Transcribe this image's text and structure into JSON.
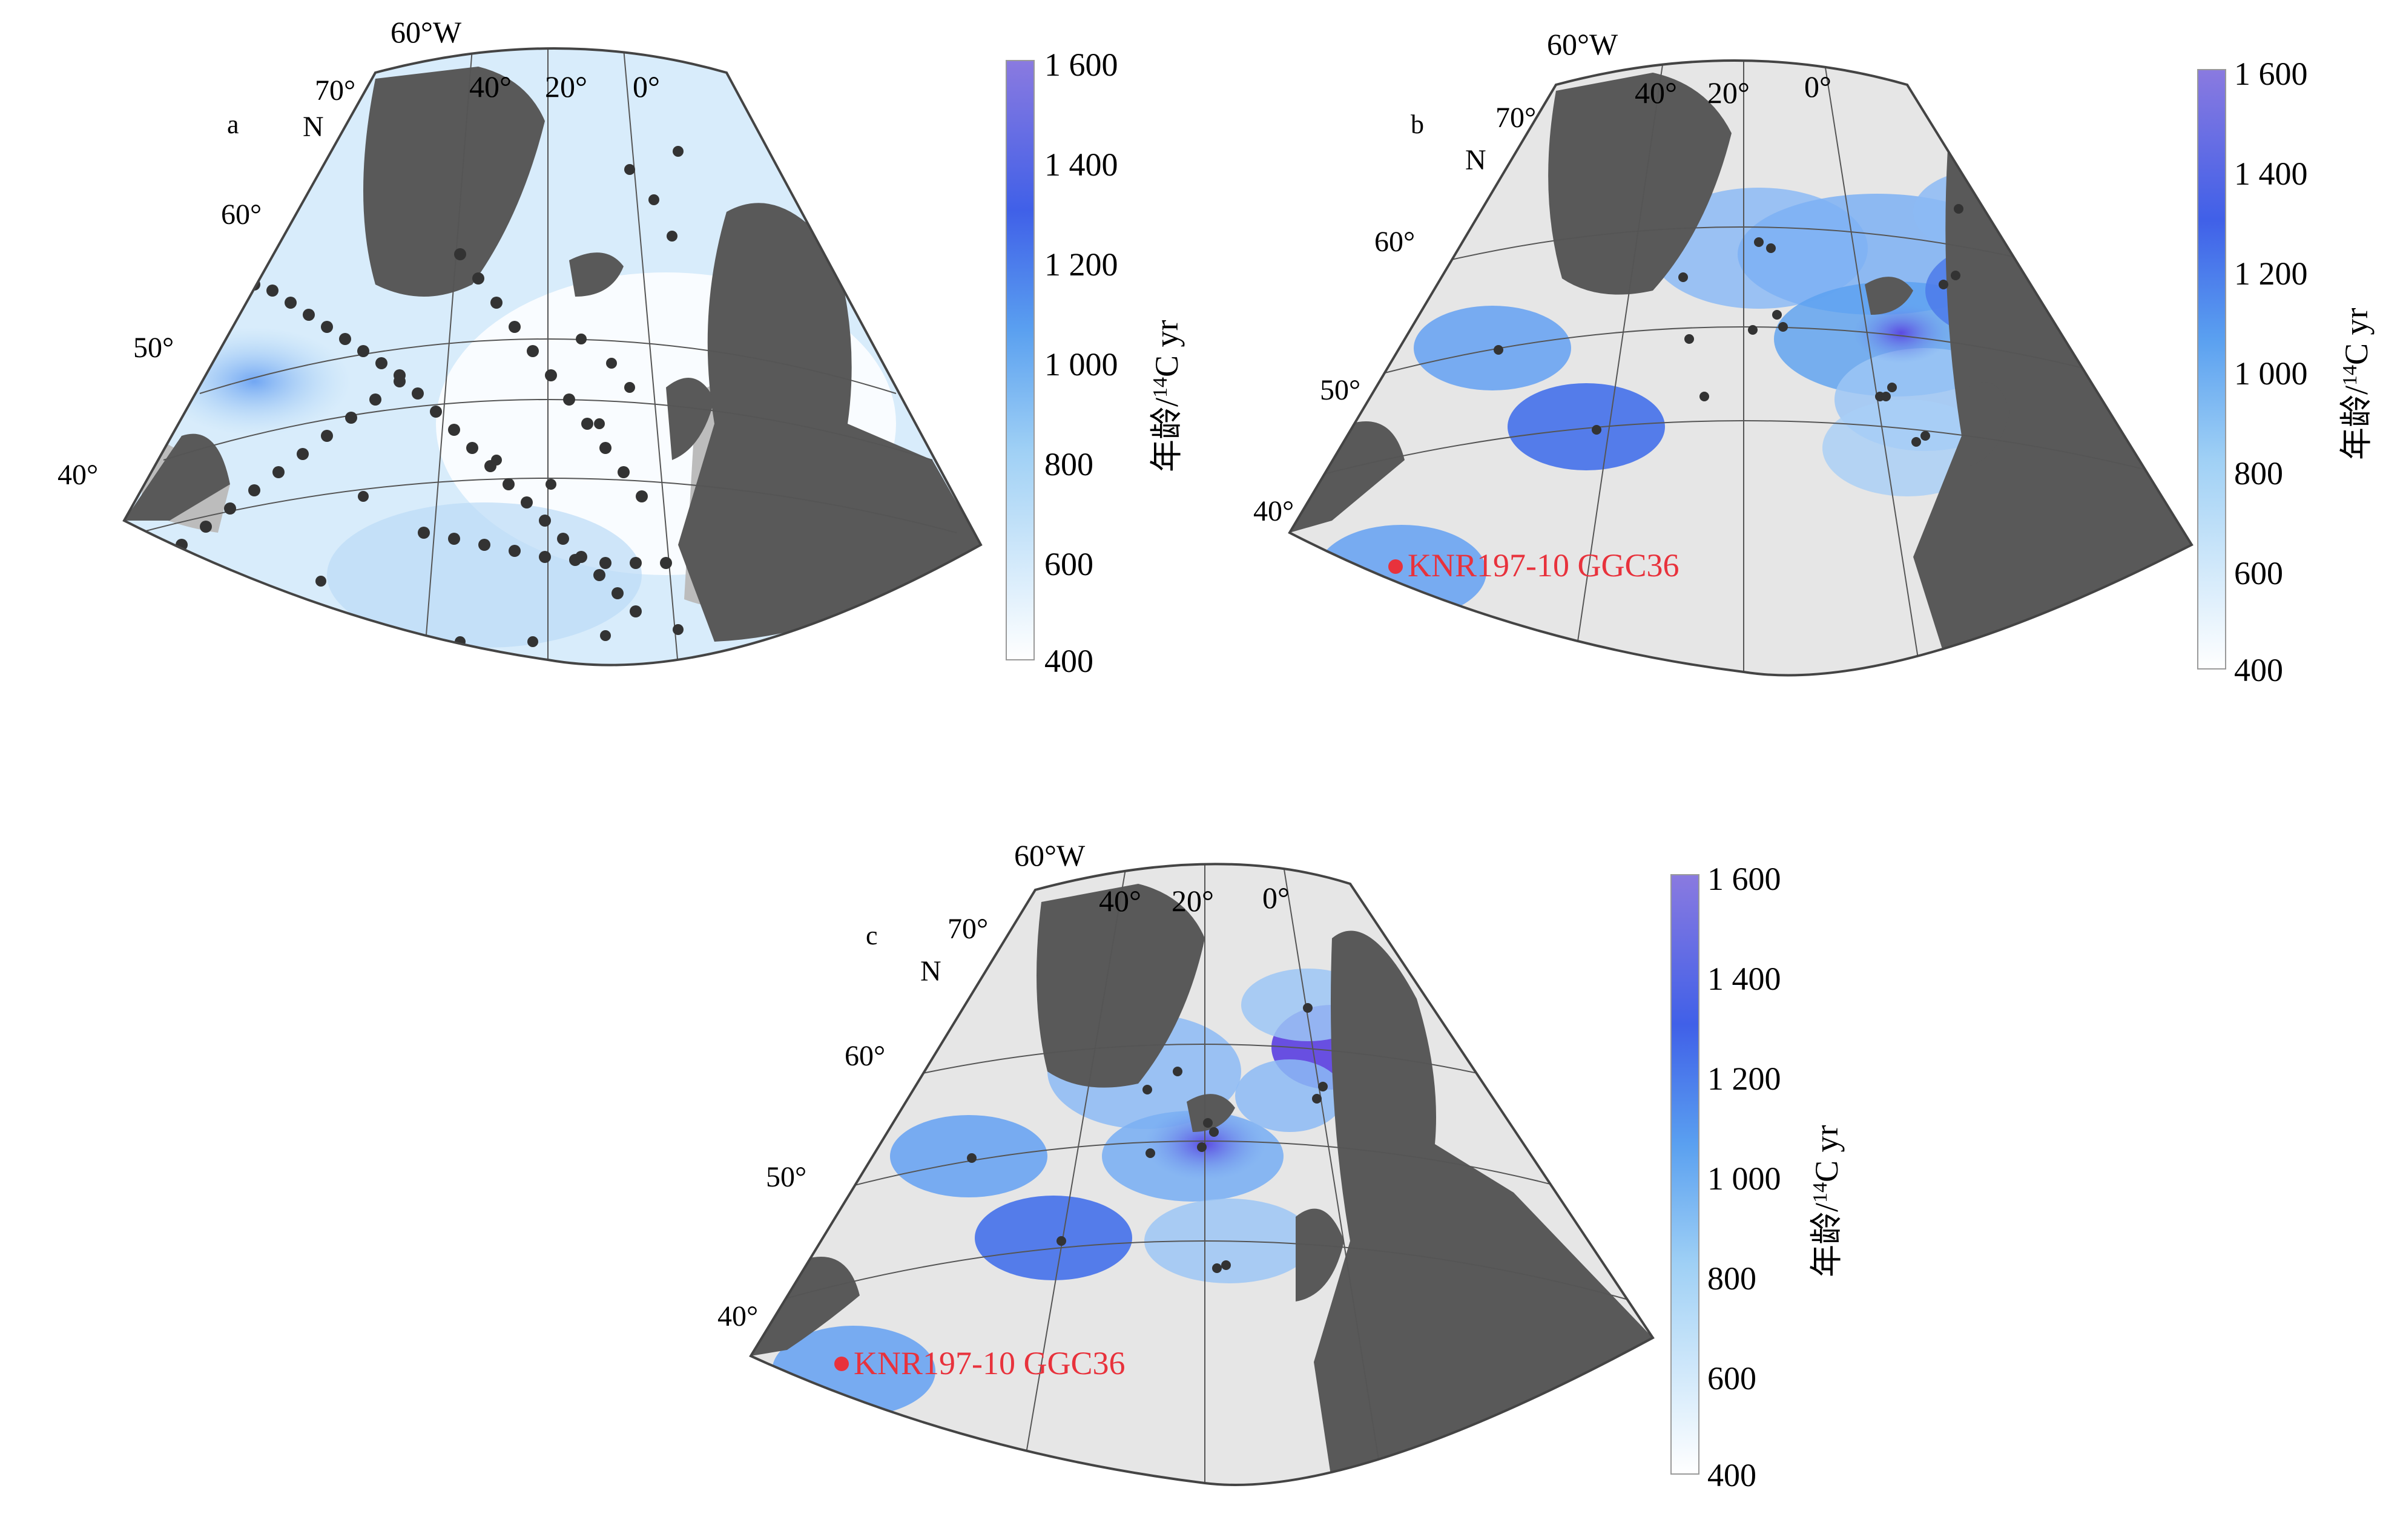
{
  "panels": [
    {
      "letter": "a",
      "lat_labels": [
        "70°",
        "N",
        "60°",
        "50°",
        "40°"
      ],
      "lon_labels": [
        "60°W",
        "40°",
        "20°",
        "0°"
      ],
      "colorbar": {
        "ticks": [
          "1 600",
          "1 400",
          "1 200",
          "1 000",
          "800",
          "600",
          "400"
        ],
        "title": "年龄/",
        "title_sup": "14",
        "title_unit": "C yr"
      }
    },
    {
      "letter": "b",
      "lat_labels": [
        "70°",
        "N",
        "60°",
        "50°",
        "40°"
      ],
      "lon_labels": [
        "60°W",
        "40°",
        "20°",
        "0°"
      ],
      "core_label": "KNR197-10 GGC36",
      "colorbar": {
        "ticks": [
          "1 600",
          "1 400",
          "1 200",
          "1 000",
          "800",
          "600",
          "400"
        ],
        "title": "年龄/",
        "title_sup": "14",
        "title_unit": "C yr"
      }
    },
    {
      "letter": "c",
      "lat_labels": [
        "70°",
        "N",
        "60°",
        "50°",
        "40°"
      ],
      "lon_labels": [
        "60°W",
        "40°",
        "20°",
        "0°"
      ],
      "core_label": "KNR197-10 GGC36",
      "colorbar": {
        "ticks": [
          "1 600",
          "1 400",
          "1 200",
          "1 000",
          "800",
          "600",
          "400"
        ],
        "title": "年龄/",
        "title_sup": "14",
        "title_unit": "C yr"
      }
    }
  ],
  "colors": {
    "land": "#595959",
    "ocean_bg": "#e6e6e6",
    "shelf": "#bcbcbc",
    "colormap_low": "#ffffff",
    "colormap_mid": "#5aa0f0",
    "colormap_high": "#8a7ae0",
    "dot": "#333333",
    "core_marker": "#e8323c"
  },
  "colorbar_range": [
    400,
    1600
  ]
}
